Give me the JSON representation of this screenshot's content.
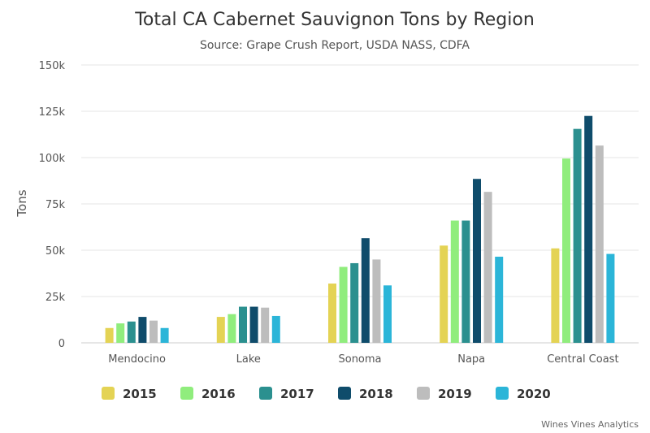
{
  "chart_data": {
    "type": "bar",
    "title": "Total CA Cabernet Sauvignon Tons by Region",
    "subtitle": "Source: Grape Crush Report, USDA NASS, CDFA",
    "xlabel": "",
    "ylabel": "Tons",
    "ylim": [
      0,
      150000
    ],
    "yticks": [
      0,
      25000,
      50000,
      75000,
      100000,
      125000,
      150000
    ],
    "ytick_labels": [
      "0",
      "25k",
      "50k",
      "75k",
      "100k",
      "125k",
      "150k"
    ],
    "grid": true,
    "legend_position": "bottom",
    "categories": [
      "Mendocino",
      "Lake",
      "Sonoma",
      "Napa",
      "Central Coast"
    ],
    "series": [
      {
        "name": "2015",
        "color": "#e4d354",
        "values": [
          8000,
          14000,
          32000,
          52500,
          51000
        ]
      },
      {
        "name": "2016",
        "color": "#90ed7d",
        "values": [
          10500,
          15500,
          41000,
          66000,
          99500
        ]
      },
      {
        "name": "2017",
        "color": "#2b908f",
        "values": [
          11500,
          19500,
          43000,
          66000,
          115500
        ]
      },
      {
        "name": "2018",
        "color": "#0f4c6b",
        "values": [
          14000,
          19500,
          56500,
          88500,
          122500
        ]
      },
      {
        "name": "2019",
        "color": "#bdbdbd",
        "values": [
          12000,
          19000,
          45000,
          81500,
          106500
        ]
      },
      {
        "name": "2020",
        "color": "#2bb5d8",
        "values": [
          8000,
          14500,
          31000,
          46500,
          48000
        ]
      }
    ],
    "credit": "Wines Vines Analytics"
  }
}
